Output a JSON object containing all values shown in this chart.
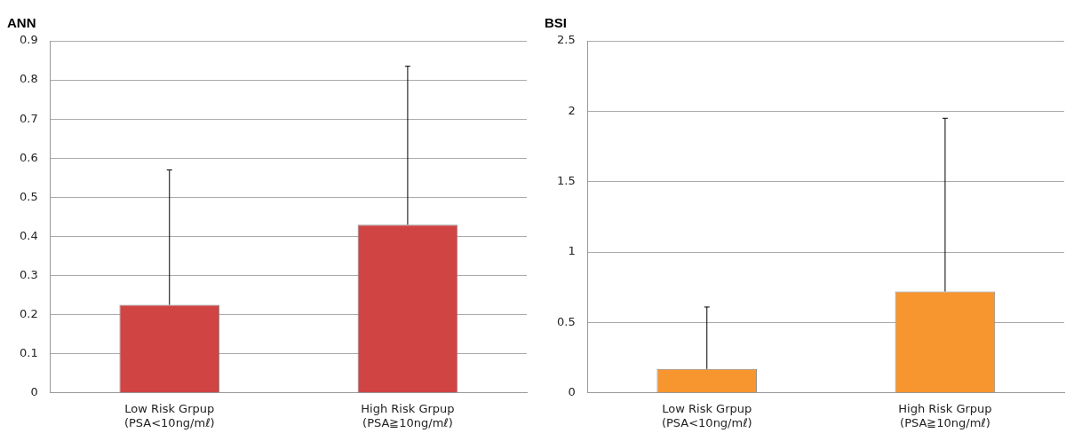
{
  "chart_data": [
    {
      "type": "bar",
      "title": "ANN",
      "categories": [
        "Low Risk Grpup\n(PSA<10ng/mℓ)",
        "High Risk Grpup\n(PSA≧10ng/mℓ)"
      ],
      "values": [
        0.225,
        0.43
      ],
      "errors": [
        [
          0.225,
          0.57
        ],
        [
          0.43,
          0.835
        ]
      ],
      "color": "#d04444",
      "ylim": [
        0,
        0.9
      ],
      "yticks": [
        0,
        0.1,
        0.2,
        0.3,
        0.4,
        0.5,
        0.6,
        0.7,
        0.8,
        0.9
      ],
      "grid": "y",
      "legend": false
    },
    {
      "type": "bar",
      "title": "BSI",
      "categories": [
        "Low Risk Grpup\n(PSA<10ng/mℓ)",
        "High Risk Grpup\n(PSA≧10ng/mℓ)"
      ],
      "values": [
        0.17,
        0.72
      ],
      "errors": [
        [
          0.17,
          0.61
        ],
        [
          0.72,
          1.95
        ]
      ],
      "color": "#f7952e",
      "ylim": [
        0,
        2.5
      ],
      "yticks": [
        0,
        0.5,
        1,
        1.5,
        2,
        2.5
      ],
      "grid": "y",
      "legend": false
    }
  ]
}
